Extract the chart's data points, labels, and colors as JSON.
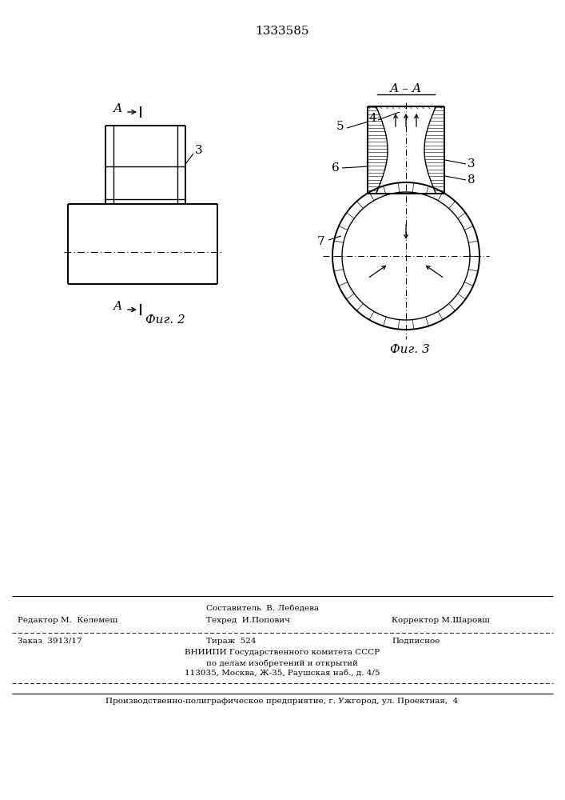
{
  "patent_number": "1333585",
  "bg_color": "#ffffff",
  "lc": "#000000",
  "fig2_label": "Фиг. 2",
  "fig3_label": "Фиг. 3",
  "section_label": "А–А",
  "cut_label": "А"
}
